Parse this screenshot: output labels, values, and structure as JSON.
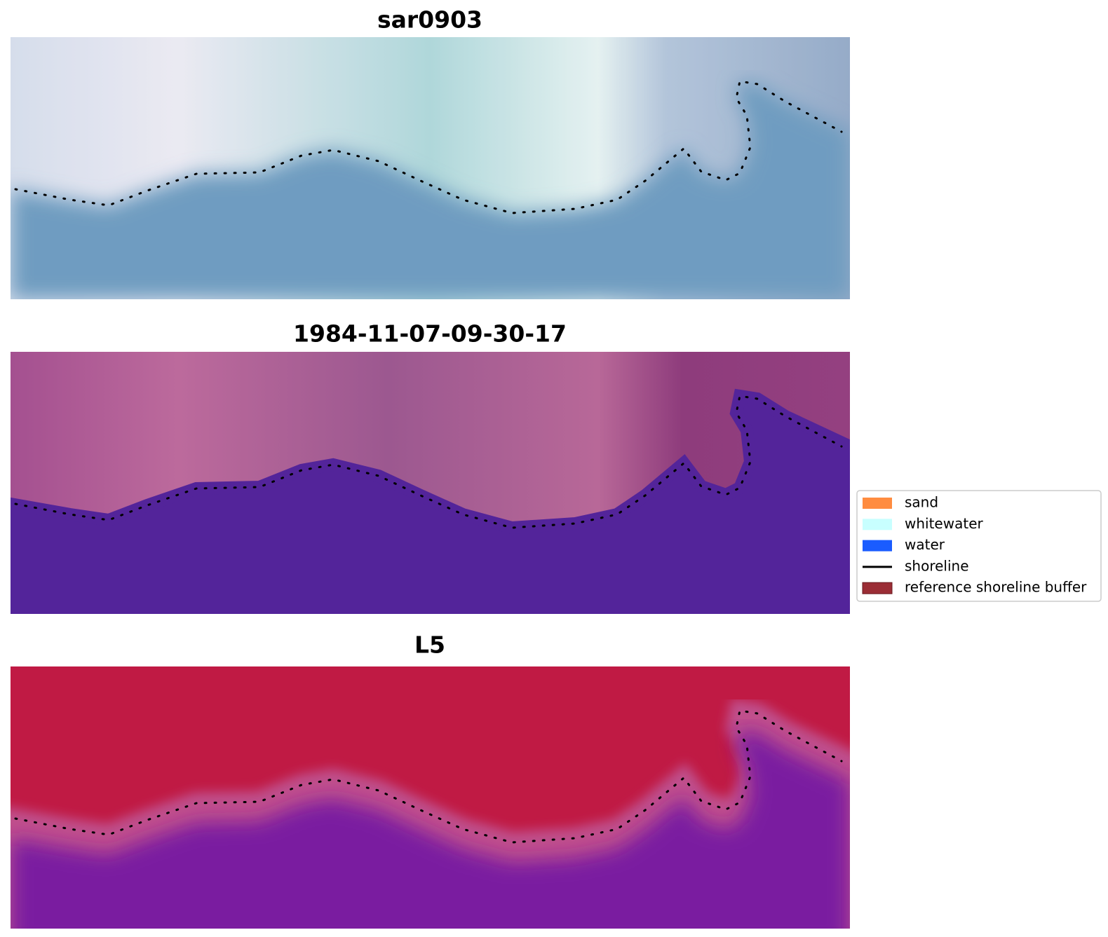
{
  "panels": [
    {
      "title": "sar0903"
    },
    {
      "title": "1984-11-07-09-30-17"
    },
    {
      "title": "L5"
    }
  ],
  "legend": {
    "items": [
      {
        "label": "sand",
        "color": "#ff8c40",
        "kind": "patch"
      },
      {
        "label": "whitewater",
        "color": "#c8ffff",
        "kind": "patch"
      },
      {
        "label": "water",
        "color": "#1a5cff",
        "kind": "patch"
      },
      {
        "label": "shoreline",
        "color": "#000000",
        "kind": "line"
      },
      {
        "label": "reference shoreline buffer",
        "color": "#9b2d35",
        "kind": "patch"
      }
    ]
  }
}
